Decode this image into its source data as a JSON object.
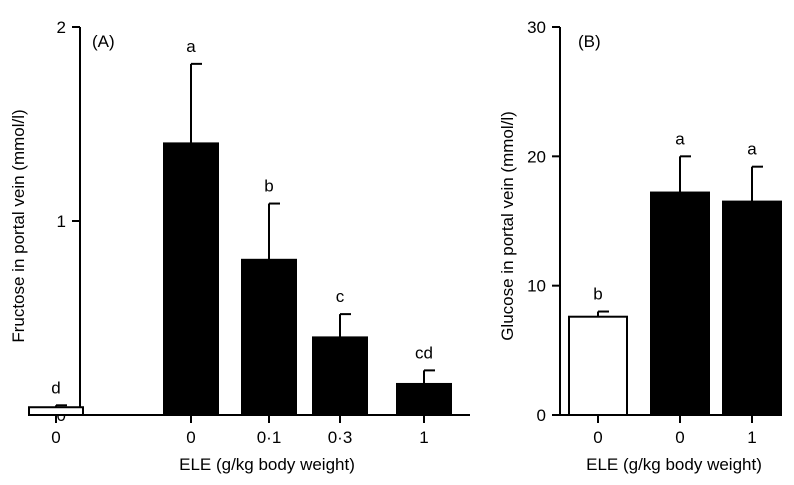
{
  "chart_data": [
    {
      "type": "bar",
      "panel_label": "(A)",
      "ylabel": "Fructose in portal vein (mmol/l)",
      "xlabel": "ELE (g/kg body weight)",
      "ylim": [
        0,
        2
      ],
      "yticks": [
        "0",
        "1",
        "2"
      ],
      "categories": [
        "0",
        "0",
        "0·1",
        "0·3",
        "1"
      ],
      "values": [
        0.04,
        1.4,
        0.8,
        0.4,
        0.16
      ],
      "errors": [
        0.01,
        0.41,
        0.29,
        0.12,
        0.07
      ],
      "labels": [
        "d",
        "a",
        "b",
        "c",
        "cd"
      ],
      "fills": [
        "#ffffff",
        "#000000",
        "#000000",
        "#000000",
        "#000000"
      ]
    },
    {
      "type": "bar",
      "panel_label": "(B)",
      "ylabel": "Glucose in portal vein (mmol/l)",
      "xlabel": "ELE (g/kg body weight)",
      "ylim": [
        0,
        30
      ],
      "yticks": [
        "0",
        "10",
        "20",
        "30"
      ],
      "categories": [
        "0",
        "0",
        "1"
      ],
      "values": [
        7.6,
        17.2,
        16.5
      ],
      "errors": [
        0.4,
        2.8,
        2.7
      ],
      "labels": [
        "b",
        "a",
        "a"
      ],
      "fills": [
        "#ffffff",
        "#000000",
        "#000000"
      ]
    }
  ]
}
